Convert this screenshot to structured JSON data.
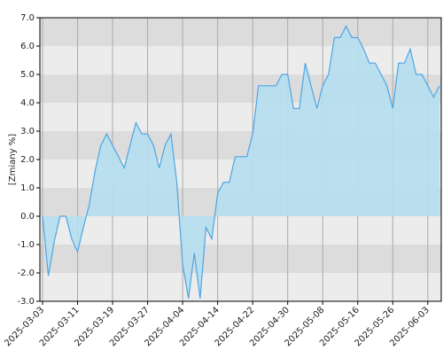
{
  "chart_data": {
    "type": "area",
    "y_label": "[Zmiany %]",
    "categories": [
      "2025-03-03",
      null,
      null,
      null,
      null,
      null,
      "2025-03-11",
      null,
      null,
      null,
      null,
      null,
      "2025-03-19",
      null,
      null,
      null,
      null,
      null,
      "2025-03-27",
      null,
      null,
      null,
      null,
      null,
      "2025-04-04",
      null,
      null,
      null,
      null,
      null,
      "2025-04-14",
      null,
      null,
      null,
      null,
      null,
      "2025-04-22",
      null,
      null,
      null,
      null,
      null,
      "2025-04-30",
      null,
      null,
      null,
      null,
      null,
      "2025-05-08",
      null,
      null,
      null,
      null,
      null,
      "2025-05-16",
      null,
      null,
      null,
      null,
      null,
      "2025-05-26",
      null,
      null,
      null,
      null,
      null,
      "2025-06-03",
      null,
      null
    ],
    "values": [
      0.0,
      -2.1,
      -0.9,
      0.0,
      0.0,
      -0.8,
      -1.25,
      -0.4,
      0.4,
      1.6,
      2.5,
      2.9,
      2.5,
      2.1,
      1.7,
      2.5,
      3.3,
      2.9,
      2.9,
      2.5,
      1.7,
      2.5,
      2.9,
      1.2,
      -1.7,
      -2.9,
      -1.3,
      -2.9,
      -0.4,
      -0.8,
      0.8,
      1.2,
      1.2,
      2.1,
      2.1,
      2.1,
      2.9,
      4.6,
      4.6,
      4.6,
      4.6,
      5.0,
      5.0,
      3.8,
      3.8,
      5.4,
      4.6,
      3.8,
      4.6,
      5.0,
      6.3,
      6.3,
      6.7,
      6.3,
      6.3,
      5.9,
      5.4,
      5.4,
      5.0,
      4.6,
      3.8,
      5.4,
      5.4,
      5.9,
      5.0,
      5.0,
      4.6,
      4.2,
      4.6
    ],
    "color": "#4ea5e3",
    "fill": "#b5dff0",
    "ylim": [
      -3,
      7
    ],
    "yticks": [
      {
        "value": -3,
        "label": "-3.0"
      },
      {
        "value": -2,
        "label": "-2.0"
      },
      {
        "value": -1,
        "label": "-1.0"
      },
      {
        "value": 0,
        "label": "0.0"
      },
      {
        "value": 1,
        "label": "1.0"
      },
      {
        "value": 2,
        "label": "2.0"
      },
      {
        "value": 3,
        "label": "3.0"
      },
      {
        "value": 4,
        "label": "4.0"
      },
      {
        "value": 5,
        "label": "5.0"
      },
      {
        "value": 6,
        "label": "6.0"
      },
      {
        "value": 7,
        "label": "7.0"
      }
    ],
    "grid": true
  }
}
